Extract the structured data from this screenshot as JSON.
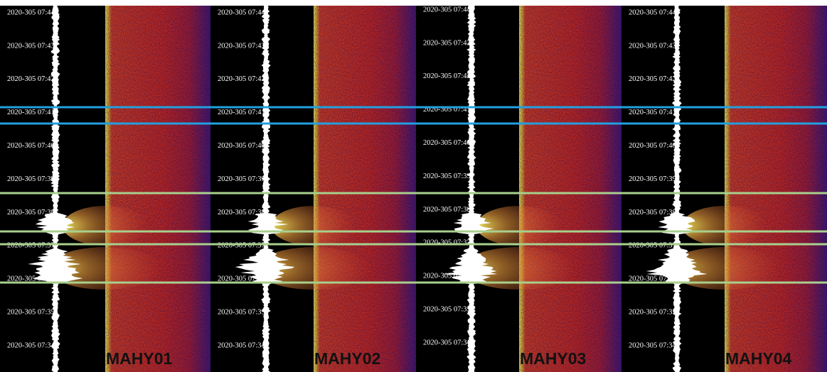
{
  "panels": [
    {
      "station": "MAHY01",
      "time_labels": [
        "2020-305 07:44",
        "2020-305 07:43",
        "2020-305 07:42",
        "2020-305 07:41",
        "2020-305 07:40",
        "2020-305 07:39",
        "2020-305 07:38",
        "2020-305 07:37",
        "2020-305 07:36",
        "2020-305 07:35",
        "2020-305 07:34"
      ]
    },
    {
      "station": "MAHY02",
      "time_labels": [
        "2020-305 07:44",
        "2020-305 07:43",
        "2020-305 07:42",
        "2020-305 07:41",
        "2020-305 07:40",
        "2020-305 07:39",
        "2020-305 07:38",
        "2020-305 07:37",
        "2020-305 07:36",
        "2020-305 07:35",
        "2020-305 07:34"
      ]
    },
    {
      "station": "MAHY03",
      "time_labels": [
        "2020-305 07:44",
        "2020-305 07:43",
        "2020-305 07:42",
        "2020-305 07:41",
        "2020-305 07:40",
        "2020-305 07:39",
        "2020-305 07:38",
        "2020-305 07:37",
        "2020-305 07:36",
        "2020-305 07:35",
        "2020-305 07:34"
      ]
    },
    {
      "station": "MAHY04",
      "time_labels": [
        "2020-305 07:44",
        "2020-305 07:43",
        "2020-305 07:42",
        "2020-305 07:41",
        "2020-305 07:40",
        "2020-305 07:39",
        "2020-305 07:38",
        "2020-305 07:37",
        "2020-305 07:36",
        "2020-305 07:35",
        "2020-305 07:34"
      ]
    }
  ]
}
